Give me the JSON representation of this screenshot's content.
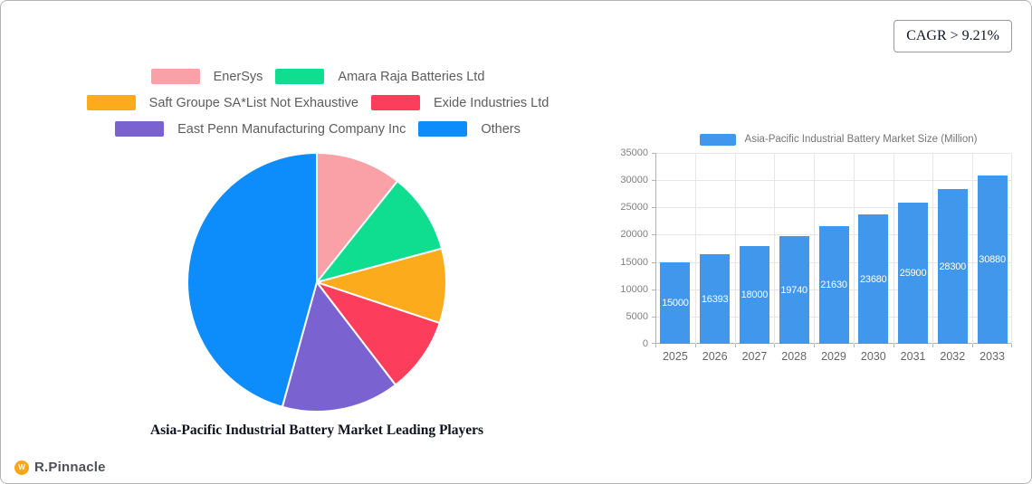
{
  "page": {
    "cagr_badge": "CAGR > 9.21%",
    "brand_name": "R.Pinnacle",
    "brand_glyph": "W"
  },
  "colors": {
    "canvas_border": "#b4b4b4",
    "badge_border": "#9a9a9a",
    "badge_text": "#101425",
    "legend_text": "#5d5d5d",
    "pie_title_text": "#10131f",
    "grid_line": "#e6e6e6",
    "axis_line": "#b3b3b3",
    "y_label_text": "#808080",
    "x_label_text": "#666666",
    "bar_value_text": "#ffffff",
    "bar_legend_text": "#757575",
    "brand_text": "#4f4f58",
    "brand_icon_bg": "#F9A61A"
  },
  "chart_data": [
    {
      "type": "pie",
      "title": "Asia-Pacific Industrial Battery Market Leading Players",
      "labels": [
        "EnerSys",
        "Amara Raja Batteries Ltd",
        "Saft Groupe SA*List Not Exhaustive",
        "Exide Industries Ltd",
        "East Penn Manufacturing Company Inc",
        "Others"
      ],
      "values": [
        10.7,
        10.1,
        9.3,
        9.5,
        14.7,
        45.7
      ],
      "colors": [
        "#F9A1A7",
        "#0FDD90",
        "#FBAB1B",
        "#FC3E5C",
        "#7A63D1",
        "#0D8CFC"
      ],
      "legend_position": "top",
      "start_angle_deg": -90,
      "direction": "clockwise"
    },
    {
      "type": "bar",
      "categories": [
        "2025",
        "2026",
        "2027",
        "2028",
        "2029",
        "2030",
        "2031",
        "2032",
        "2033"
      ],
      "series": [
        {
          "name": "Asia-Pacific Industrial Battery Market Size (Million)",
          "color": "#4197EC",
          "values": [
            15000,
            16393,
            18000,
            19740,
            21630,
            23680,
            25900,
            28300,
            30880
          ]
        }
      ],
      "ylim": [
        0,
        35000
      ],
      "ytick_step": 5000,
      "yticks": [
        0,
        5000,
        10000,
        15000,
        20000,
        25000,
        30000,
        35000
      ],
      "grid": true,
      "legend_position": "top",
      "value_labels": "inside-center-white"
    }
  ]
}
